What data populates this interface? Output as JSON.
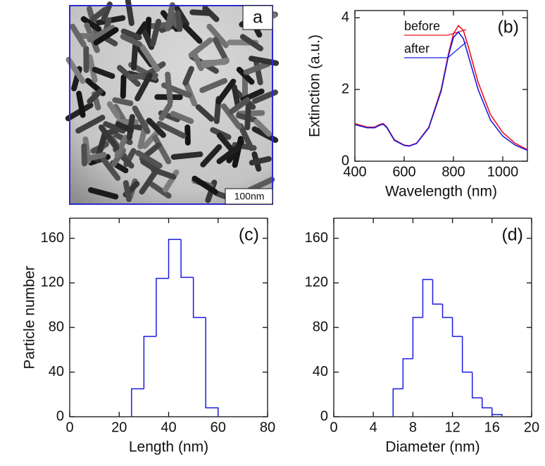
{
  "chart_data": [
    {
      "type": "image",
      "annotation": "a",
      "scale_bar": "100nm"
    },
    {
      "type": "line",
      "annotation": "(b)",
      "x_label": "Wavelength (nm)",
      "y_label": "Extinction (a.u.)",
      "x": [
        400,
        450,
        480,
        500,
        515,
        530,
        560,
        600,
        620,
        650,
        700,
        750,
        780,
        800,
        820,
        840,
        860,
        900,
        950,
        1000,
        1050,
        1100
      ],
      "series": [
        {
          "name": "before",
          "color": "#e8101e",
          "values": [
            1.05,
            0.95,
            0.95,
            1.02,
            1.05,
            0.95,
            0.6,
            0.45,
            0.43,
            0.5,
            0.95,
            2.0,
            3.0,
            3.55,
            3.78,
            3.65,
            3.2,
            2.2,
            1.3,
            0.8,
            0.5,
            0.32
          ]
        },
        {
          "name": "after",
          "color": "#1a1ae0",
          "values": [
            1.02,
            0.93,
            0.93,
            1.0,
            1.03,
            0.93,
            0.58,
            0.44,
            0.42,
            0.49,
            0.93,
            1.95,
            2.95,
            3.45,
            3.6,
            3.42,
            2.95,
            2.0,
            1.15,
            0.7,
            0.45,
            0.3
          ]
        }
      ],
      "xlim": [
        400,
        1100
      ],
      "xticks": [
        400,
        600,
        800,
        1000
      ],
      "ylim": [
        0,
        4.2
      ],
      "yticks": [
        0,
        2,
        4
      ]
    },
    {
      "type": "histogram",
      "annotation": "(c)",
      "x_label": "Length (nm)",
      "y_label": "Particle number",
      "color": "#1a1ae0",
      "bins": [
        25,
        30,
        35,
        40,
        45,
        50,
        55,
        60
      ],
      "values": [
        25,
        72,
        124,
        159,
        125,
        89,
        8
      ],
      "xlim": [
        0,
        80
      ],
      "xticks": [
        0,
        20,
        40,
        60,
        80
      ],
      "ylim": [
        0,
        178
      ],
      "yticks": [
        0,
        40,
        80,
        120,
        160
      ]
    },
    {
      "type": "histogram",
      "annotation": "(d)",
      "x_label": "Diameter (nm)",
      "color": "#1a1ae0",
      "bins": [
        6,
        7,
        8,
        9,
        10,
        11,
        12,
        13,
        14,
        15,
        16,
        17
      ],
      "values": [
        25,
        52,
        89,
        123,
        101,
        89,
        72,
        40,
        17,
        8,
        2
      ],
      "xlim": [
        0,
        20
      ],
      "xticks": [
        0,
        4,
        8,
        12,
        16,
        20
      ],
      "ylim": [
        0,
        178
      ],
      "yticks": [
        0,
        40,
        80,
        120,
        160
      ]
    }
  ]
}
